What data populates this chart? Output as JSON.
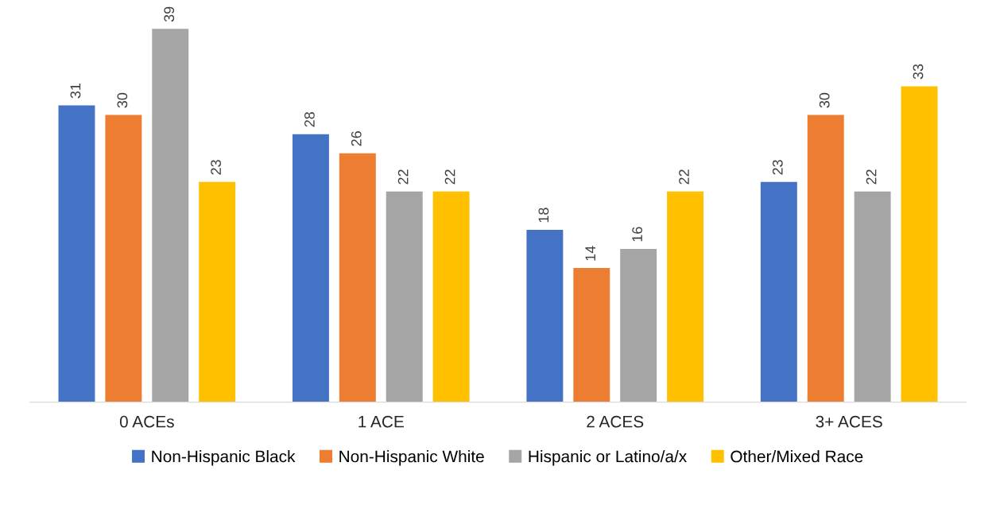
{
  "chart_data": {
    "type": "bar",
    "categories": [
      "0 ACEs",
      "1 ACE",
      "2 ACES",
      "3+ ACES"
    ],
    "series": [
      {
        "name": "Non-Hispanic Black",
        "color": "#4472c4",
        "values": [
          31,
          28,
          18,
          23
        ]
      },
      {
        "name": "Non-Hispanic White",
        "color": "#ed7d31",
        "values": [
          30,
          26,
          14,
          30
        ]
      },
      {
        "name": "Hispanic or Latino/a/x",
        "color": "#a5a5a5",
        "values": [
          39,
          22,
          16,
          22
        ]
      },
      {
        "name": "Other/Mixed Race",
        "color": "#ffc000",
        "values": [
          23,
          22,
          22,
          33
        ]
      }
    ],
    "data_labels": true,
    "legend": "bottom",
    "grid": false,
    "tick_labels": "x"
  }
}
